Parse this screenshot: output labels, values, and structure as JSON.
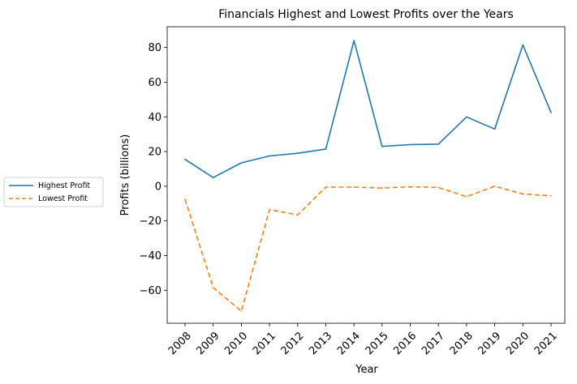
{
  "chart_data": {
    "type": "line",
    "title": "Financials Highest and Lowest Profits over the Years",
    "xlabel": "Year",
    "ylabel": "Profits (billions)",
    "categories": [
      "2008",
      "2009",
      "2010",
      "2011",
      "2012",
      "2013",
      "2014",
      "2015",
      "2016",
      "2017",
      "2018",
      "2019",
      "2020",
      "2021"
    ],
    "ylim": [
      -79,
      92
    ],
    "yticks": [
      80,
      60,
      40,
      20,
      0,
      -20,
      -40,
      -60
    ],
    "ytick_labels": [
      "80",
      "60",
      "40",
      "20",
      "0",
      "−20",
      "−40",
      "−60"
    ],
    "xtick_rotation": 45,
    "grid": false,
    "legend_position": "left, outside plot area",
    "series": [
      {
        "name": "Highest Profit",
        "color": "#1f77b4",
        "linestyle": "solid",
        "values": [
          15.5,
          5.0,
          13.5,
          17.5,
          19.0,
          21.5,
          84.0,
          23.0,
          24.0,
          24.3,
          40.0,
          33.0,
          81.5,
          42.5
        ]
      },
      {
        "name": "Lowest Profit",
        "color": "#ff7f0e",
        "linestyle": "dashed",
        "values": [
          -7.5,
          -58.5,
          -72.0,
          -13.5,
          -16.5,
          -0.5,
          -0.5,
          -1.0,
          -0.3,
          -0.7,
          -6.0,
          0.0,
          -4.5,
          -5.5
        ]
      }
    ]
  }
}
